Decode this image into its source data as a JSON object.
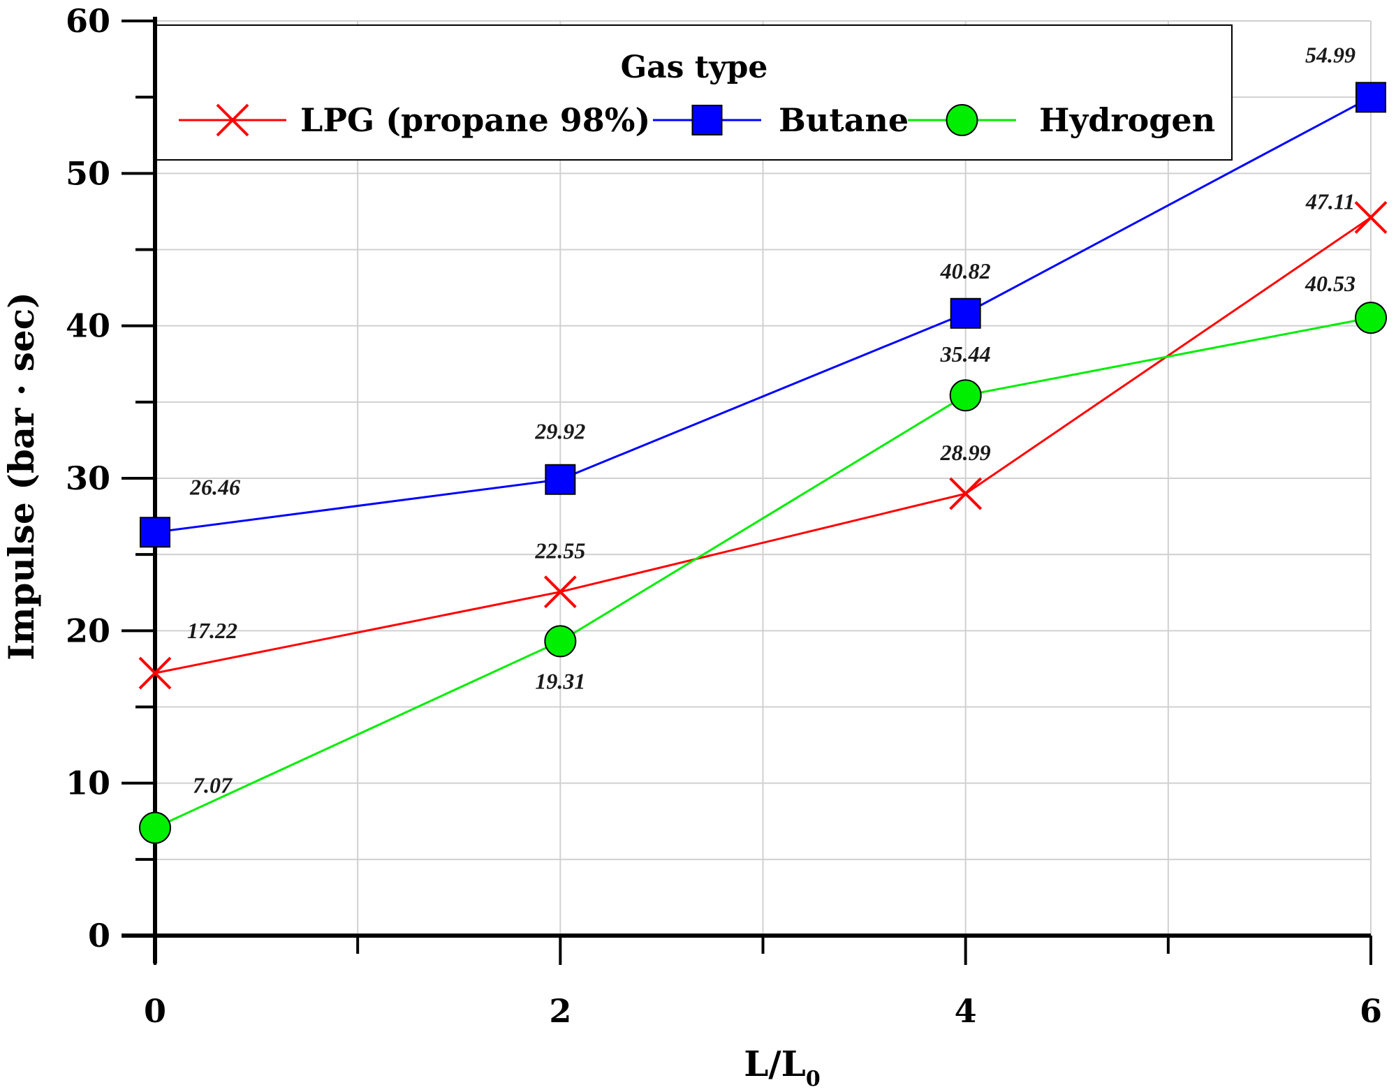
{
  "chart_data": {
    "type": "line",
    "xlabel_main": "L/L",
    "xlabel_sub": "0",
    "ylabel": "Impulse (bar · sec)",
    "xlim": [
      0,
      6
    ],
    "ylim": [
      0,
      60
    ],
    "x_ticks": [
      "0",
      "2",
      "4",
      "6"
    ],
    "x_tick_values": [
      0,
      2,
      4,
      6
    ],
    "y_ticks": [
      "0",
      "10",
      "20",
      "30",
      "40",
      "50",
      "60"
    ],
    "y_tick_values": [
      0,
      10,
      20,
      30,
      40,
      50,
      60
    ],
    "grid": true,
    "legend_title": "Gas type",
    "legend_position": "top",
    "series": [
      {
        "name": "LPG (propane 98%)",
        "color": "#ff0000",
        "marker": "x",
        "x": [
          0,
          2,
          4,
          6
        ],
        "values": [
          17.22,
          22.55,
          28.99,
          47.11
        ],
        "labels": [
          "17.22",
          "22.55",
          "28.99",
          "47.11"
        ]
      },
      {
        "name": "Butane",
        "color": "#0000ff",
        "marker": "square",
        "x": [
          0,
          2,
          4,
          6
        ],
        "values": [
          26.46,
          29.92,
          40.82,
          54.99
        ],
        "labels": [
          "26.46",
          "29.92",
          "40.82",
          "54.99"
        ]
      },
      {
        "name": "Hydrogen",
        "color": "#00ee00",
        "marker": "circle",
        "x": [
          0,
          2,
          4,
          6
        ],
        "values": [
          7.07,
          19.31,
          35.44,
          40.53
        ],
        "labels": [
          "7.07",
          "19.31",
          "35.44",
          "40.53"
        ]
      }
    ]
  }
}
